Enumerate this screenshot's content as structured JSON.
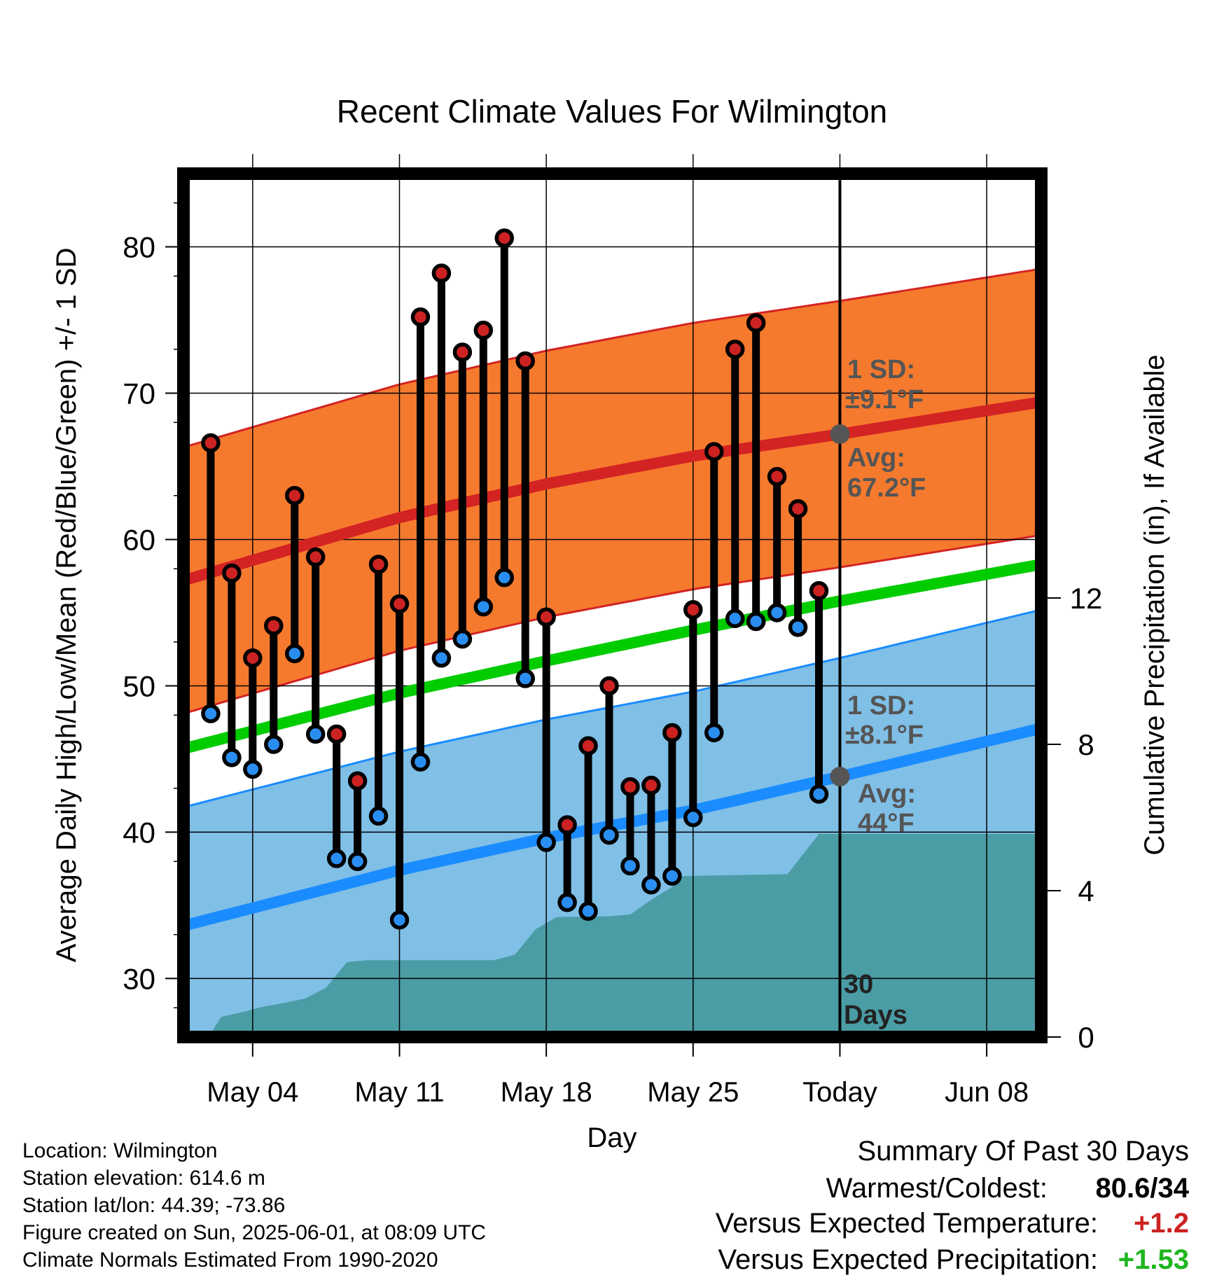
{
  "title": "Recent Climate Values For Wilmington",
  "xlabel": "Day",
  "ylabel_left": "Average Daily High/Low/Mean (Red/Blue/Green) +/- 1 SD",
  "ylabel_right": "Cumulative Precipitation (in), If Available",
  "annotations": {
    "high_sd_line1": "1 SD:",
    "high_sd_line2": "±9.1°F",
    "high_avg_line1": "Avg:",
    "high_avg_line2": "67.2°F",
    "low_sd_line1": "1 SD:",
    "low_sd_line2": "±8.1°F",
    "low_avg_line1": "Avg:",
    "low_avg_line2": "44°F",
    "days_line1": "30",
    "days_line2": "Days"
  },
  "footer": {
    "location": "Location: Wilmington",
    "elevation": "Station elevation: 614.6 m",
    "latlon": "Station lat/lon: 44.39; -73.86",
    "created": "Figure created on Sun, 2025-06-01, at 08:09 UTC",
    "normals": "Climate Normals Estimated From 1990-2020"
  },
  "summary": {
    "heading": "Summary Of Past 30 Days",
    "warm_cold_label": "Warmest/Coldest:",
    "warm_cold_value": "80.6/34",
    "temp_label": "Versus Expected Temperature:",
    "temp_value": "+1.2",
    "precip_label": "Versus Expected Precipitation:",
    "precip_value": "+1.53"
  },
  "colors": {
    "high_band": "#f57a2e",
    "high_avg": "#d42323",
    "low_band": "#80bfe6",
    "low_avg": "#1a8cff",
    "mean": "#00cc00",
    "precip": "#4a9ca5",
    "high_dot": "#cc2222",
    "low_dot": "#2a8ef0",
    "warm_text": "#cc2222",
    "precip_text": "#1fb51f",
    "annotation": "#555555"
  },
  "chart_data": {
    "type": "line",
    "x_tick_labels": [
      "May 04",
      "May 11",
      "May 18",
      "May 25",
      "Today",
      "Jun 08"
    ],
    "x_tick_days": [
      4,
      11,
      18,
      25,
      32,
      39
    ],
    "xlim_days": [
      0.7,
      41.6
    ],
    "ylim_left": [
      26,
      85
    ],
    "y_left_ticks": [
      30,
      40,
      50,
      60,
      70,
      80
    ],
    "ylim_right": [
      0,
      23.6
    ],
    "y_right_ticks": [
      0,
      4,
      8,
      12
    ],
    "today_day": 32,
    "days": [
      2,
      3,
      4,
      5,
      6,
      7,
      8,
      9,
      10,
      11,
      12,
      13,
      14,
      15,
      16,
      17,
      18,
      19,
      20,
      21,
      22,
      23,
      24,
      25,
      26,
      27,
      28,
      29,
      30,
      31
    ],
    "highs": [
      66.6,
      57.7,
      51.9,
      54.1,
      63.0,
      58.8,
      46.7,
      43.5,
      58.3,
      55.6,
      75.2,
      78.2,
      72.8,
      74.3,
      80.6,
      72.2,
      54.7,
      40.5,
      45.9,
      50.0,
      43.1,
      43.2,
      46.8,
      55.2,
      66.0,
      73.0,
      74.8,
      64.3,
      62.1,
      56.5
    ],
    "lows": [
      48.1,
      45.1,
      44.3,
      46.0,
      52.2,
      46.7,
      38.2,
      38.0,
      41.1,
      34.0,
      44.8,
      51.9,
      53.2,
      55.4,
      57.4,
      50.5,
      39.3,
      35.2,
      34.6,
      39.8,
      37.7,
      36.4,
      37.0,
      41.0,
      46.8,
      54.6,
      54.4,
      55.0,
      54.0,
      42.6
    ],
    "normal_high": [
      [
        0.7,
        57.2
      ],
      [
        11,
        61.5
      ],
      [
        18,
        63.8
      ],
      [
        25,
        65.7
      ],
      [
        32,
        67.2
      ],
      [
        41.6,
        69.4
      ]
    ],
    "normal_high_sd": 9.1,
    "normal_low": [
      [
        0.7,
        33.6
      ],
      [
        11,
        37.4
      ],
      [
        18,
        39.6
      ],
      [
        25,
        41.5
      ],
      [
        32,
        43.8
      ],
      [
        41.6,
        47.1
      ]
    ],
    "normal_low_sd": 8.1,
    "normal_mean": [
      [
        0.7,
        45.7
      ],
      [
        11,
        49.5
      ],
      [
        18,
        51.7
      ],
      [
        25,
        53.8
      ],
      [
        32,
        55.8
      ],
      [
        41.6,
        58.3
      ]
    ],
    "precip_cumulative": [
      [
        1.9,
        0.0
      ],
      [
        2.5,
        0.55
      ],
      [
        3.5,
        0.68
      ],
      [
        4.5,
        0.83
      ],
      [
        5.5,
        0.93
      ],
      [
        6.5,
        1.05
      ],
      [
        7.5,
        1.35
      ],
      [
        8.5,
        2.05
      ],
      [
        9.5,
        2.1
      ],
      [
        15.5,
        2.1
      ],
      [
        16.5,
        2.25
      ],
      [
        17.5,
        2.95
      ],
      [
        18.5,
        3.28
      ],
      [
        21,
        3.3
      ],
      [
        22,
        3.35
      ],
      [
        23,
        3.75
      ],
      [
        24,
        4.1
      ],
      [
        24.5,
        4.4
      ],
      [
        29.5,
        4.45
      ],
      [
        31,
        5.55
      ],
      [
        41.6,
        5.55
      ]
    ]
  }
}
